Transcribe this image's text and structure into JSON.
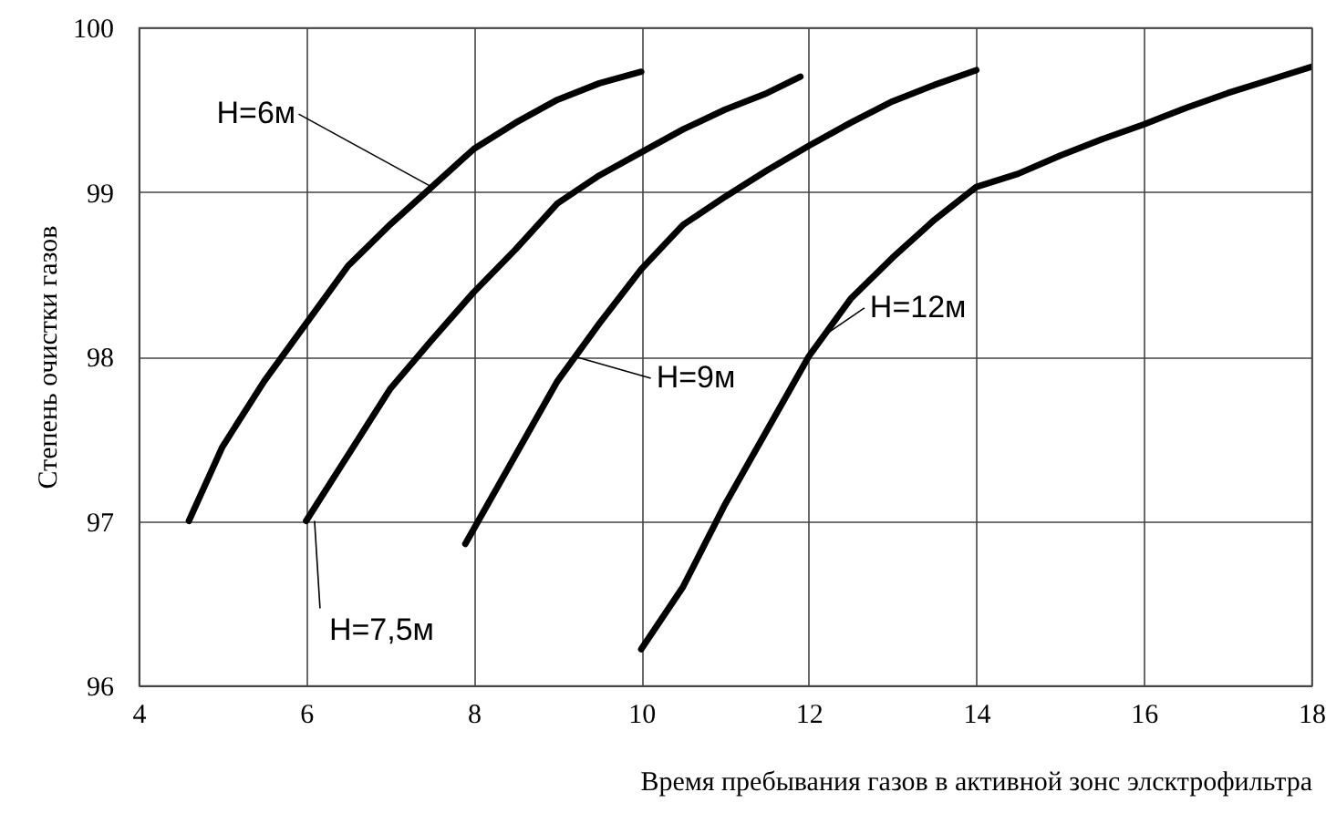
{
  "chart_data": {
    "type": "line",
    "xlabel": "Время пребывания газов в активной зонс элсктрофильтра",
    "ylabel": "Степень очистки газов",
    "xlim": [
      4,
      18
    ],
    "ylim": [
      96,
      100
    ],
    "xticks": [
      4,
      6,
      8,
      10,
      12,
      14,
      16,
      18
    ],
    "yticks": [
      96,
      97,
      98,
      99,
      100
    ],
    "grid": true,
    "line_style": "solid",
    "marker": "none",
    "series": [
      {
        "color": "#000000",
        "x": [
          4.6,
          5,
          5.5,
          6,
          6.5,
          7,
          7.5,
          8,
          8.5,
          9,
          9.5,
          10
        ],
        "values": [
          97,
          97.45,
          97.85,
          98.2,
          98.55,
          98.8,
          99.03,
          99.26,
          99.42,
          99.56,
          99.66,
          99.73
        ]
      },
      {
        "color": "#000000",
        "x": [
          6,
          6.5,
          7,
          7.5,
          8,
          8.5,
          9,
          9.5,
          10,
          10.5,
          11,
          11.5,
          11.9
        ],
        "values": [
          97,
          97.4,
          97.8,
          98.1,
          98.39,
          98.65,
          98.93,
          99.1,
          99.24,
          99.38,
          99.5,
          99.6,
          99.7
        ]
      },
      {
        "color": "#000000",
        "x": [
          7.9,
          8.5,
          9,
          9.5,
          10,
          10.5,
          11,
          11.5,
          12,
          12.5,
          13,
          13.5,
          14
        ],
        "values": [
          96.86,
          97.4,
          97.85,
          98.2,
          98.53,
          98.8,
          98.97,
          99.13,
          99.28,
          99.42,
          99.55,
          99.65,
          99.74
        ]
      },
      {
        "color": "#000000",
        "x": [
          10,
          10.5,
          11,
          11.5,
          12,
          12.5,
          13,
          13.5,
          14,
          14.5,
          15,
          15.5,
          16,
          16.5,
          17,
          17.5,
          18
        ],
        "values": [
          96.22,
          96.6,
          97.1,
          97.55,
          98,
          98.35,
          98.6,
          98.83,
          99.03,
          99.11,
          99.22,
          99.32,
          99.41,
          99.51,
          99.6,
          99.68,
          99.76
        ]
      }
    ],
    "annotations": [
      {
        "text": "H=6м",
        "x": 7.5,
        "y": 99.03
      },
      {
        "text": "H=7,5м",
        "x": 6.1,
        "y": 97
      },
      {
        "text": "H=9м",
        "x": 9.2,
        "y": 98
      },
      {
        "text": "H=12м",
        "x": 12.25,
        "y": 98.15
      }
    ]
  }
}
